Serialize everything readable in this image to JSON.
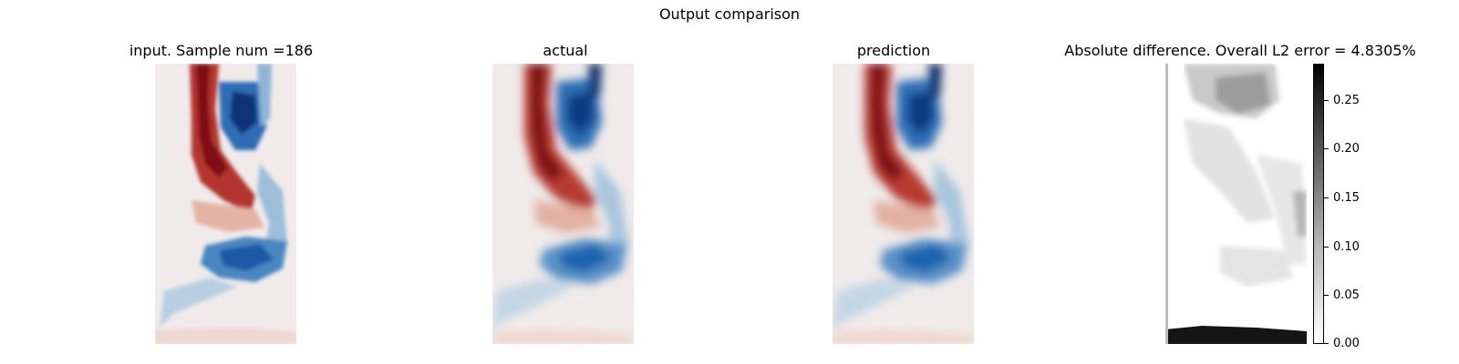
{
  "figure": {
    "suptitle": "Output comparison"
  },
  "panels": [
    {
      "title": "input. Sample num =186",
      "kind": "field-coarse"
    },
    {
      "title": "actual",
      "kind": "field-smooth"
    },
    {
      "title": "prediction",
      "kind": "field-smooth"
    },
    {
      "title": "Absolute difference. Overall L2 error = 4.8305%",
      "kind": "error-map"
    }
  ],
  "colorbar": {
    "ticks": [
      "0.25",
      "0.20",
      "0.15",
      "0.10",
      "0.05",
      "0.00"
    ],
    "tick_values": [
      0.25,
      0.2,
      0.15,
      0.1,
      0.05,
      0.0
    ],
    "range": [
      0,
      0.285
    ],
    "colormap": "Greys"
  },
  "colors": {
    "positive": "#8b0f18",
    "negative": "#0b3f8f",
    "neutral": "#f0ebea"
  },
  "chart_data": [
    {
      "type": "heatmap",
      "title": "input. Sample num =186",
      "colormap": "diverging red-white-blue"
    },
    {
      "type": "heatmap",
      "title": "actual",
      "colormap": "diverging red-white-blue"
    },
    {
      "type": "heatmap",
      "title": "prediction",
      "colormap": "diverging red-white-blue"
    },
    {
      "type": "heatmap",
      "title": "Absolute difference. Overall L2 error = 4.8305%",
      "colormap": "Greys",
      "colorbar_range": [
        0,
        0.285
      ],
      "colorbar_ticks": [
        0.0,
        0.05,
        0.1,
        0.15,
        0.2,
        0.25
      ]
    }
  ]
}
